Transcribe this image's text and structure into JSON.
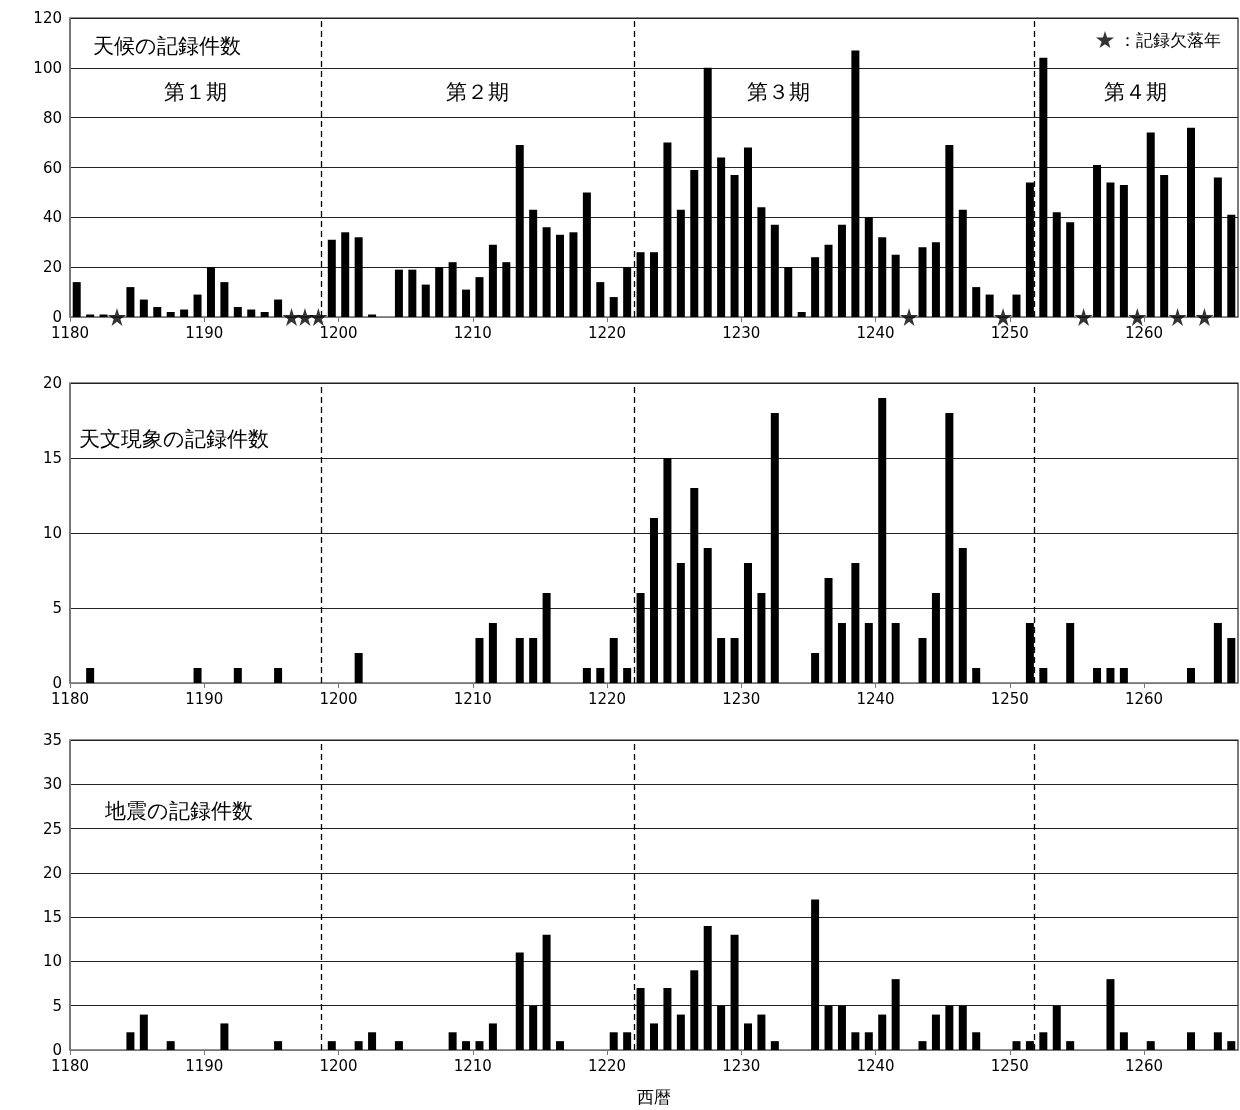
{
  "chart_data": [
    {
      "type": "bar",
      "title": "天候の記録件数",
      "x": [
        1180.5,
        1181.5,
        1182.5,
        1183.5,
        1184.5,
        1185.5,
        1186.5,
        1187.5,
        1188.5,
        1189.5,
        1190.5,
        1191.5,
        1192.5,
        1193.5,
        1194.5,
        1195.5,
        1196.5,
        1197.5,
        1198.5,
        1199.5,
        1200.5,
        1201.5,
        1202.5,
        1203.5,
        1204.5,
        1205.5,
        1206.5,
        1207.5,
        1208.5,
        1209.5,
        1210.5,
        1211.5,
        1212.5,
        1213.5,
        1214.5,
        1215.5,
        1216.5,
        1217.5,
        1218.5,
        1219.5,
        1220.5,
        1221.5,
        1222.5,
        1223.5,
        1224.5,
        1225.5,
        1226.5,
        1227.5,
        1228.5,
        1229.5,
        1230.5,
        1231.5,
        1232.5,
        1233.5,
        1234.5,
        1235.5,
        1236.5,
        1237.5,
        1238.5,
        1239.5,
        1240.5,
        1241.5,
        1242.5,
        1243.5,
        1244.5,
        1245.5,
        1246.5,
        1247.5,
        1248.5,
        1249.5,
        1250.5,
        1251.5,
        1252.5,
        1253.5,
        1254.5,
        1255.5,
        1256.5,
        1257.5,
        1258.5,
        1259.5,
        1260.5,
        1261.5,
        1262.5,
        1263.5,
        1264.5,
        1265.5,
        1266.5
      ],
      "series": [
        {
          "color": "#000000",
          "values": [
            14,
            1,
            1,
            0,
            12,
            7,
            4,
            2,
            3,
            9,
            20,
            14,
            4,
            3,
            2,
            7,
            0,
            0,
            0,
            31,
            34,
            32,
            1,
            0,
            19,
            19,
            13,
            20,
            22,
            11,
            16,
            29,
            22,
            69,
            43,
            36,
            33,
            34,
            50,
            14,
            8,
            20,
            26,
            26,
            70,
            43,
            59,
            100,
            64,
            57,
            68,
            44,
            37,
            20,
            2,
            24,
            29,
            37,
            107,
            40,
            32,
            25,
            0,
            28,
            30,
            69,
            43,
            12,
            9,
            0,
            9,
            54,
            104,
            42,
            38,
            0,
            61,
            54,
            53,
            0,
            74,
            57,
            0,
            76,
            0,
            56,
            41
          ]
        },
        {
          "type": "scatter",
          "name": "：記録欠落年",
          "color": "#000000",
          "marker": "star",
          "x": [
            1183.5,
            1196.5,
            1197.5,
            1198.5,
            1242.5,
            1249.5,
            1255.5,
            1259.5,
            1262.5,
            1264.5
          ],
          "values": [
            0,
            0,
            0,
            0,
            0,
            0,
            0,
            0,
            0,
            0
          ]
        }
      ],
      "xlim": [
        1180,
        1267
      ],
      "xticks": [
        1180,
        1190,
        1200,
        1210,
        1220,
        1230,
        1240,
        1250,
        1260
      ],
      "ylim": [
        0,
        120
      ],
      "yticks": [
        0,
        20,
        40,
        60,
        80,
        100,
        120
      ],
      "grid": "y",
      "legend": "top right",
      "ref_lines": [
        {
          "axis": "x",
          "value": 1198.7,
          "line_style": "dashed"
        },
        {
          "axis": "x",
          "value": 1222,
          "line_style": "dashed"
        },
        {
          "axis": "x",
          "value": 1251.8,
          "line_style": "dashed"
        }
      ],
      "annotations": [
        "第１期",
        "第２期",
        "第３期",
        "第４期"
      ]
    },
    {
      "type": "bar",
      "title": "天文現象の記録件数",
      "x": [
        1180.5,
        1181.5,
        1182.5,
        1183.5,
        1184.5,
        1185.5,
        1186.5,
        1187.5,
        1188.5,
        1189.5,
        1190.5,
        1191.5,
        1192.5,
        1193.5,
        1194.5,
        1195.5,
        1196.5,
        1197.5,
        1198.5,
        1199.5,
        1200.5,
        1201.5,
        1202.5,
        1203.5,
        1204.5,
        1205.5,
        1206.5,
        1207.5,
        1208.5,
        1209.5,
        1210.5,
        1211.5,
        1212.5,
        1213.5,
        1214.5,
        1215.5,
        1216.5,
        1217.5,
        1218.5,
        1219.5,
        1220.5,
        1221.5,
        1222.5,
        1223.5,
        1224.5,
        1225.5,
        1226.5,
        1227.5,
        1228.5,
        1229.5,
        1230.5,
        1231.5,
        1232.5,
        1233.5,
        1234.5,
        1235.5,
        1236.5,
        1237.5,
        1238.5,
        1239.5,
        1240.5,
        1241.5,
        1242.5,
        1243.5,
        1244.5,
        1245.5,
        1246.5,
        1247.5,
        1248.5,
        1249.5,
        1250.5,
        1251.5,
        1252.5,
        1253.5,
        1254.5,
        1255.5,
        1256.5,
        1257.5,
        1258.5,
        1259.5,
        1260.5,
        1261.5,
        1262.5,
        1263.5,
        1264.5,
        1265.5,
        1266.5
      ],
      "series": [
        {
          "color": "#000000",
          "values": [
            0,
            1,
            0,
            0,
            0,
            0,
            0,
            0,
            0,
            1,
            0,
            0,
            1,
            0,
            0,
            1,
            0,
            0,
            0,
            0,
            0,
            2,
            0,
            0,
            0,
            0,
            0,
            0,
            0,
            0,
            3,
            4,
            0,
            3,
            3,
            6,
            0,
            0,
            1,
            1,
            3,
            1,
            6,
            11,
            15,
            8,
            13,
            9,
            3,
            3,
            8,
            6,
            18,
            0,
            0,
            2,
            7,
            4,
            8,
            4,
            19,
            4,
            0,
            3,
            6,
            18,
            9,
            1,
            0,
            0,
            0,
            4,
            1,
            0,
            4,
            0,
            1,
            1,
            1,
            0,
            0,
            0,
            0,
            1,
            0,
            4,
            3
          ]
        }
      ],
      "xlim": [
        1180,
        1267
      ],
      "xticks": [
        1180,
        1190,
        1200,
        1210,
        1220,
        1230,
        1240,
        1250,
        1260
      ],
      "ylim": [
        0,
        20
      ],
      "yticks": [
        0,
        5,
        10,
        15,
        20
      ],
      "grid": "y",
      "ref_lines": [
        {
          "axis": "x",
          "value": 1198.7,
          "line_style": "dashed"
        },
        {
          "axis": "x",
          "value": 1222,
          "line_style": "dashed"
        },
        {
          "axis": "x",
          "value": 1251.8,
          "line_style": "dashed"
        }
      ]
    },
    {
      "type": "bar",
      "title": "地震の記録件数",
      "xlabel": "西暦",
      "x": [
        1180.5,
        1181.5,
        1182.5,
        1183.5,
        1184.5,
        1185.5,
        1186.5,
        1187.5,
        1188.5,
        1189.5,
        1190.5,
        1191.5,
        1192.5,
        1193.5,
        1194.5,
        1195.5,
        1196.5,
        1197.5,
        1198.5,
        1199.5,
        1200.5,
        1201.5,
        1202.5,
        1203.5,
        1204.5,
        1205.5,
        1206.5,
        1207.5,
        1208.5,
        1209.5,
        1210.5,
        1211.5,
        1212.5,
        1213.5,
        1214.5,
        1215.5,
        1216.5,
        1217.5,
        1218.5,
        1219.5,
        1220.5,
        1221.5,
        1222.5,
        1223.5,
        1224.5,
        1225.5,
        1226.5,
        1227.5,
        1228.5,
        1229.5,
        1230.5,
        1231.5,
        1232.5,
        1233.5,
        1234.5,
        1235.5,
        1236.5,
        1237.5,
        1238.5,
        1239.5,
        1240.5,
        1241.5,
        1242.5,
        1243.5,
        1244.5,
        1245.5,
        1246.5,
        1247.5,
        1248.5,
        1249.5,
        1250.5,
        1251.5,
        1252.5,
        1253.5,
        1254.5,
        1255.5,
        1256.5,
        1257.5,
        1258.5,
        1259.5,
        1260.5,
        1261.5,
        1262.5,
        1263.5,
        1264.5,
        1265.5,
        1266.5
      ],
      "series": [
        {
          "color": "#000000",
          "values": [
            0,
            0,
            0,
            0,
            2,
            4,
            0,
            1,
            0,
            0,
            0,
            3,
            0,
            0,
            0,
            1,
            0,
            0,
            0,
            1,
            0,
            1,
            2,
            0,
            1,
            0,
            0,
            0,
            2,
            1,
            1,
            3,
            0,
            11,
            5,
            13,
            1,
            0,
            0,
            0,
            2,
            2,
            7,
            3,
            7,
            4,
            9,
            14,
            5,
            13,
            3,
            4,
            1,
            0,
            0,
            17,
            5,
            5,
            2,
            2,
            4,
            8,
            0,
            1,
            4,
            5,
            5,
            2,
            0,
            0,
            1,
            1,
            2,
            5,
            1,
            0,
            0,
            8,
            2,
            0,
            1,
            0,
            0,
            2,
            0,
            2,
            1
          ]
        }
      ],
      "xlim": [
        1180,
        1267
      ],
      "xticks": [
        1180,
        1190,
        1200,
        1210,
        1220,
        1230,
        1240,
        1250,
        1260
      ],
      "ylim": [
        0,
        35
      ],
      "yticks": [
        0,
        5,
        10,
        15,
        20,
        25,
        30,
        35
      ],
      "grid": "y",
      "ref_lines": [
        {
          "axis": "x",
          "value": 1198.7,
          "line_style": "dashed"
        },
        {
          "axis": "x",
          "value": 1222,
          "line_style": "dashed"
        },
        {
          "axis": "x",
          "value": 1251.8,
          "line_style": "dashed"
        }
      ]
    }
  ]
}
